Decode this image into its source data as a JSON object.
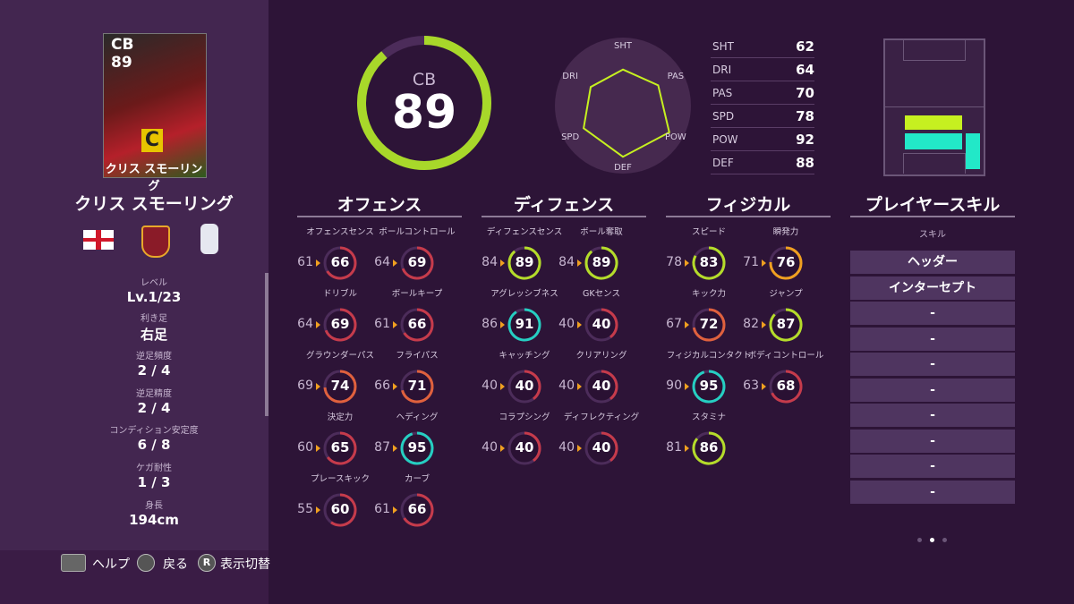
{
  "card": {
    "position": "CB",
    "rating": 89,
    "name": "クリス スモーリング",
    "badge": "C"
  },
  "player": {
    "name": "クリス スモーリング",
    "info": [
      {
        "label": "レベル",
        "value": "Lv.1/23"
      },
      {
        "label": "利き足",
        "value": "右足"
      },
      {
        "label": "逆足頻度",
        "value": "2 / 4"
      },
      {
        "label": "逆足精度",
        "value": "2 / 4"
      },
      {
        "label": "コンディション安定度",
        "value": "6 / 8"
      },
      {
        "label": "ケガ耐性",
        "value": "1 / 3"
      },
      {
        "label": "身長",
        "value": "194cm"
      }
    ]
  },
  "overall": {
    "position": "CB",
    "rating": 89
  },
  "radar": {
    "stats": [
      {
        "label": "SHT",
        "value": 62
      },
      {
        "label": "DRI",
        "value": 64
      },
      {
        "label": "PAS",
        "value": 70
      },
      {
        "label": "SPD",
        "value": 78
      },
      {
        "label": "POW",
        "value": 92
      },
      {
        "label": "DEF",
        "value": 88
      }
    ]
  },
  "sections": [
    {
      "title": "オフェンス",
      "stats": [
        {
          "label": "オフェンスセンス",
          "base": 61,
          "value": 66
        },
        {
          "label": "ボールコントロール",
          "base": 64,
          "value": 69
        },
        {
          "label": "ドリブル",
          "base": 64,
          "value": 69
        },
        {
          "label": "ボールキープ",
          "base": 61,
          "value": 66
        },
        {
          "label": "グラウンダーパス",
          "base": 69,
          "value": 74
        },
        {
          "label": "フライパス",
          "base": 66,
          "value": 71
        },
        {
          "label": "決定力",
          "base": 60,
          "value": 65
        },
        {
          "label": "ヘディング",
          "base": 87,
          "value": 95
        },
        {
          "label": "プレースキック",
          "base": 55,
          "value": 60
        },
        {
          "label": "カーブ",
          "base": 61,
          "value": 66
        }
      ]
    },
    {
      "title": "ディフェンス",
      "stats": [
        {
          "label": "ディフェンスセンス",
          "base": 84,
          "value": 89
        },
        {
          "label": "ボール奪取",
          "base": 84,
          "value": 89
        },
        {
          "label": "アグレッシブネス",
          "base": 86,
          "value": 91
        },
        {
          "label": "GKセンス",
          "base": 40,
          "value": 40
        },
        {
          "label": "キャッチング",
          "base": 40,
          "value": 40
        },
        {
          "label": "クリアリング",
          "base": 40,
          "value": 40
        },
        {
          "label": "コラプシング",
          "base": 40,
          "value": 40
        },
        {
          "label": "ディフレクティング",
          "base": 40,
          "value": 40
        }
      ]
    },
    {
      "title": "フィジカル",
      "stats": [
        {
          "label": "スピード",
          "base": 78,
          "value": 83
        },
        {
          "label": "瞬発力",
          "base": 71,
          "value": 76
        },
        {
          "label": "キック力",
          "base": 67,
          "value": 72
        },
        {
          "label": "ジャンプ",
          "base": 82,
          "value": 87
        },
        {
          "label": "フィジカルコンタクト",
          "base": 90,
          "value": 95
        },
        {
          "label": "ボディコントロール",
          "base": 63,
          "value": 68
        },
        {
          "label": "スタミナ",
          "base": 81,
          "value": 86
        }
      ]
    }
  ],
  "skills": {
    "title": "プレイヤースキル",
    "subtitle": "スキル",
    "items": [
      "ヘッダー",
      "インターセプト",
      "-",
      "-",
      "-",
      "-",
      "-",
      "-",
      "-",
      "-"
    ]
  },
  "footer": {
    "items": [
      {
        "label": "ヘルプ"
      },
      {
        "label": "戻る"
      },
      {
        "button": "R",
        "label": "表示切替"
      }
    ]
  }
}
